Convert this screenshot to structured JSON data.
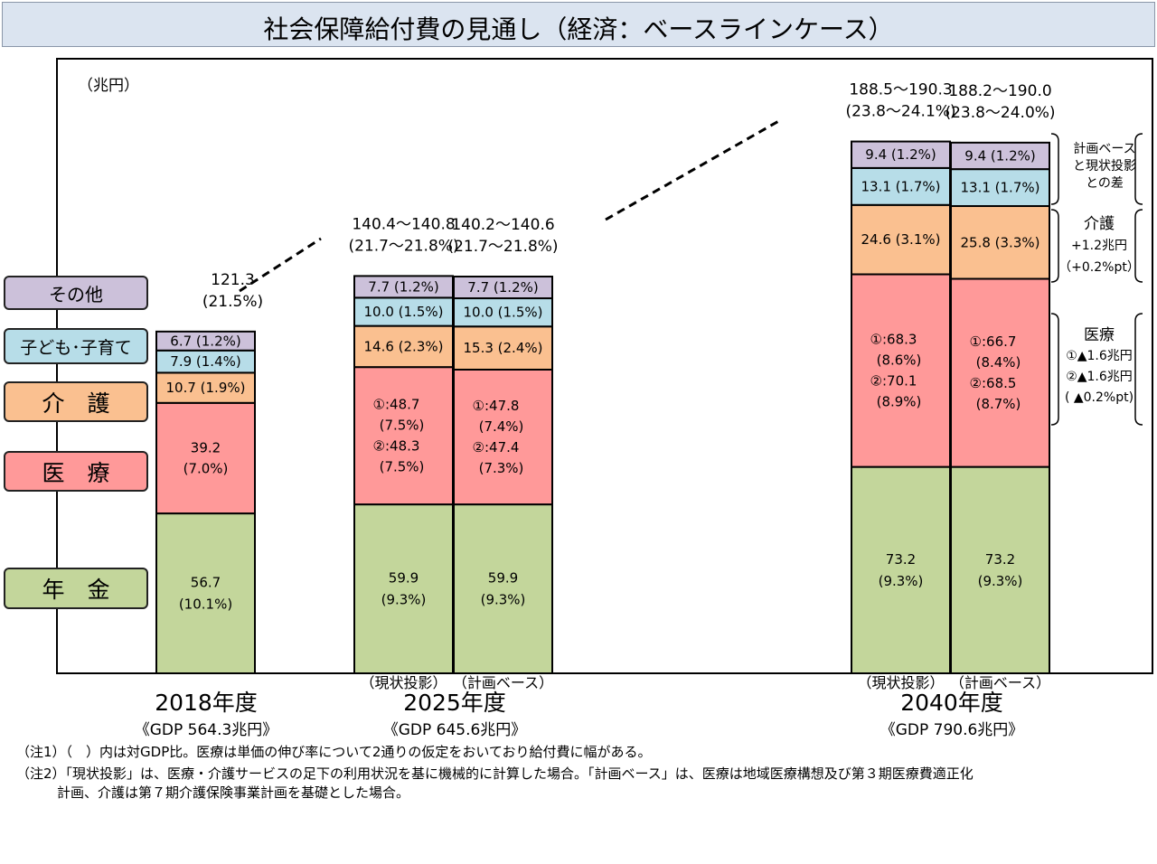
{
  "title": "社会保障給付費の見通し（経済：ベースラインケース）",
  "unit": "（兆円）",
  "colors": {
    "pension": "#c3d69b",
    "medical": "#ff9999",
    "care": "#fac090",
    "child": "#b7dde8",
    "other": "#ccc1da"
  },
  "legend": [
    {
      "key": "other",
      "label": "その他"
    },
    {
      "key": "child",
      "label": "子ども･子育て"
    },
    {
      "key": "care",
      "label": "介　護"
    },
    {
      "key": "medical",
      "label": "医　療"
    },
    {
      "key": "pension",
      "label": "年　金"
    }
  ],
  "chart_data": {
    "type": "bar",
    "stacked": true,
    "series_order": [
      "pension",
      "medical",
      "care",
      "child",
      "other"
    ],
    "bars": [
      {
        "sublabel": "",
        "values": {
          "pension": 56.7,
          "medical": 39.2,
          "care": 10.7,
          "child": 7.9,
          "other": 6.7
        },
        "labels": {
          "pension": [
            "56.7",
            "(10.1%)"
          ],
          "medical": [
            "39.2",
            "(7.0%)"
          ],
          "care": [
            "10.7 (1.9%)"
          ],
          "child": [
            "7.9 (1.4%)"
          ],
          "other": [
            "6.7 (1.2%)"
          ]
        }
      },
      {
        "sublabel": "（現状投影）",
        "values": {
          "pension": 59.9,
          "medical": 48.7,
          "care": 14.6,
          "child": 10.0,
          "other": 7.7
        },
        "labels": {
          "pension": [
            "59.9",
            "(9.3%)"
          ],
          "medical": [
            "①:48.7",
            "(7.5%)",
            "②:48.3",
            "(7.5%)"
          ],
          "care": [
            "14.6 (2.3%)"
          ],
          "child": [
            "10.0 (1.5%)"
          ],
          "other": [
            "7.7 (1.2%)"
          ]
        }
      },
      {
        "sublabel": "（計画ベース）",
        "values": {
          "pension": 59.9,
          "medical": 47.8,
          "care": 15.3,
          "child": 10.0,
          "other": 7.7
        },
        "labels": {
          "pension": [
            "59.9",
            "(9.3%)"
          ],
          "medical": [
            "①:47.8",
            "(7.4%)",
            "②:47.4",
            "(7.3%)"
          ],
          "care": [
            "15.3 (2.4%)"
          ],
          "child": [
            "10.0 (1.5%)"
          ],
          "other": [
            "7.7 (1.2%)"
          ]
        }
      },
      {
        "sublabel": "（現状投影）",
        "values": {
          "pension": 73.2,
          "medical": 68.3,
          "care": 24.6,
          "child": 13.1,
          "other": 9.4
        },
        "labels": {
          "pension": [
            "73.2",
            "(9.3%)"
          ],
          "medical": [
            "①:68.3",
            "(8.6%)",
            "②:70.1",
            "(8.9%)"
          ],
          "care": [
            "24.6 (3.1%)"
          ],
          "child": [
            "13.1 (1.7%)"
          ],
          "other": [
            "9.4 (1.2%)"
          ]
        }
      },
      {
        "sublabel": "（計画ベース）",
        "values": {
          "pension": 73.2,
          "medical": 66.7,
          "care": 25.8,
          "child": 13.1,
          "other": 9.4
        },
        "labels": {
          "pension": [
            "73.2",
            "(9.3%)"
          ],
          "medical": [
            "①:66.7",
            "(8.4%)",
            "②:68.5",
            "(8.7%)"
          ],
          "care": [
            "25.8 (3.3%)"
          ],
          "child": [
            "13.1 (1.7%)"
          ],
          "other": [
            "9.4 (1.2%)"
          ]
        }
      }
    ],
    "totals": [
      [
        "121.3",
        "(21.5%)"
      ],
      [
        "140.4～140.8",
        "(21.7～21.8%)"
      ],
      [
        "140.2～140.6",
        "(21.7～21.8%)"
      ],
      [
        "188.5～190.3",
        "(23.8～24.1%)"
      ],
      [
        "188.2～190.0",
        "(23.8～24.0%)"
      ]
    ],
    "years": [
      {
        "label": "2018年度",
        "gdp": "《GDP 564.3兆円》"
      },
      {
        "label": "2025年度",
        "gdp": "《GDP 645.6兆円》"
      },
      {
        "label": "2040年度",
        "gdp": "《GDP 790.6兆円》"
      }
    ]
  },
  "side_notes": {
    "diff": [
      "計画ベース",
      "と現状投影",
      "との差"
    ],
    "care": [
      "介護",
      "+1.2兆円",
      "（+0.2%pt）"
    ],
    "medical": [
      "医療",
      "①▲1.6兆円",
      "②▲1.6兆円",
      "( ▲0.2%pt)"
    ]
  },
  "notes": [
    "（注1）（　）内は対GDP比。医療は単価の伸び率について2通りの仮定をおいており給付費に幅がある。",
    "（注2）「現状投影」は、医療・介護サービスの足下の利用状況を基に機械的に計算した場合。「計画ベース」は、医療は地域医療構想及び第３期医療費適正化",
    "　　　計画、介護は第７期介護保険事業計画を基礎とした場合。"
  ]
}
